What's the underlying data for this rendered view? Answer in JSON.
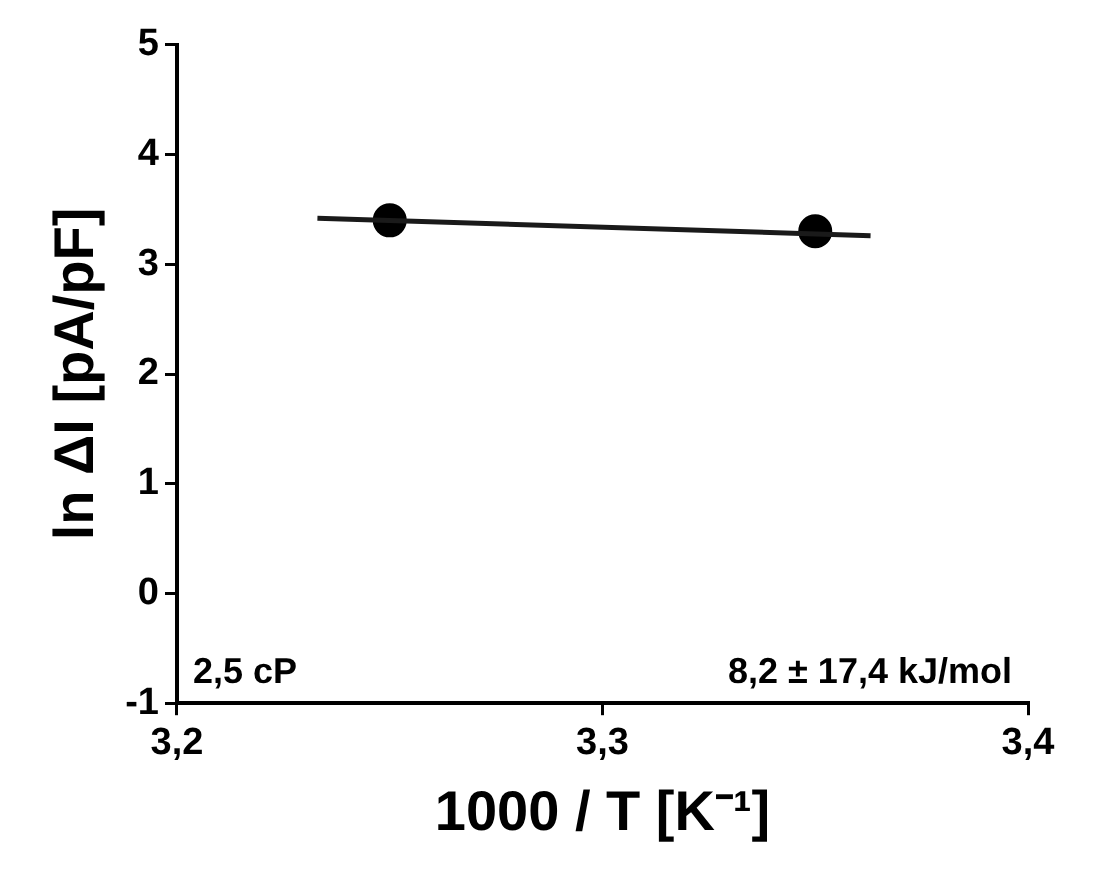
{
  "chart_data": {
    "type": "scatter",
    "xlabel": "1000 / T [K⁻¹]",
    "ylabel": "ln ΔI [pA/pF]",
    "xlim": [
      3.2,
      3.4
    ],
    "xticks": [
      {
        "value": 3.2,
        "label": "3,2"
      },
      {
        "value": 3.3,
        "label": "3,3"
      },
      {
        "value": 3.4,
        "label": "3,4"
      }
    ],
    "ylim": [
      -1,
      5
    ],
    "yticks": [
      -1,
      0,
      1,
      2,
      3,
      4,
      5
    ],
    "grid": false,
    "legend": false,
    "marker": "circle",
    "series": [
      {
        "color": "#000000",
        "x": [
          3.25,
          3.35
        ],
        "values": [
          3.4,
          3.3
        ]
      },
      {
        "type": "line",
        "color": "#1a1a1a",
        "marker": "none",
        "line_style": "solid",
        "x": [
          3.233,
          3.363
        ],
        "values": [
          3.42,
          3.26
        ]
      }
    ],
    "annotations": [
      "2,5 cP",
      "8,2 ± 17,4 kJ/mol"
    ]
  }
}
